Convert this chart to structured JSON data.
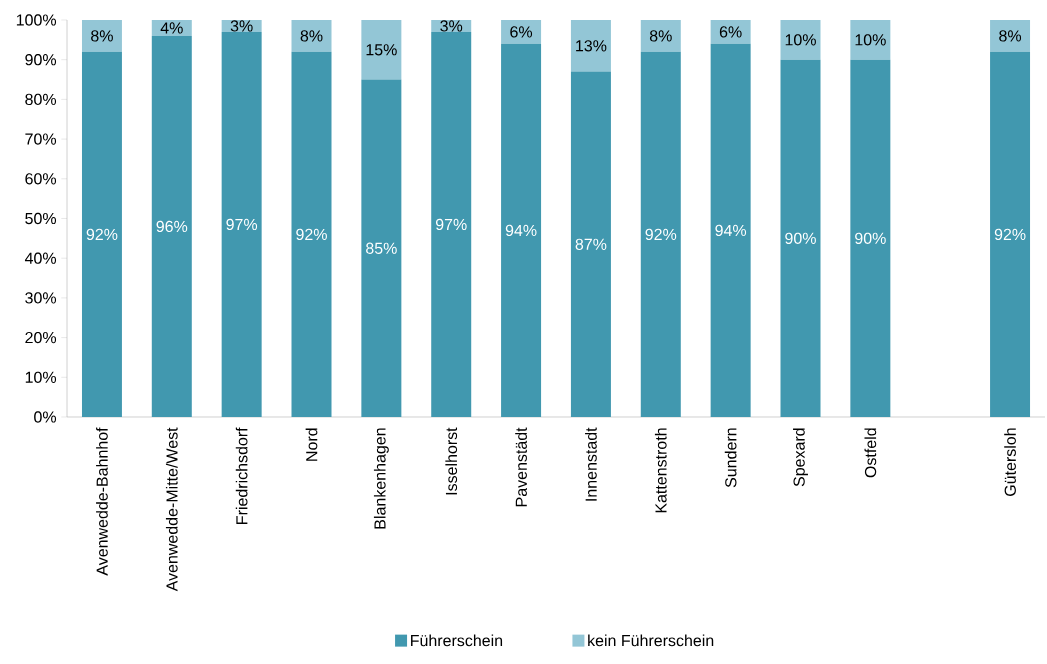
{
  "chart_data": {
    "type": "bar",
    "stacked": true,
    "categories": [
      "Avenwedde-Bahnhof",
      "Avenwedde-Mitte/West",
      "Friedrichsdorf",
      "Nord",
      "Blankenhagen",
      "Isselhorst",
      "Pavenstädt",
      "Innenstadt",
      "Kattenstroth",
      "Sundern",
      "Spexard",
      "Ostfeld",
      null,
      "Gütersloh"
    ],
    "series": [
      {
        "name": "Führerschein",
        "color": "#4198af",
        "values": [
          92,
          96,
          97,
          92,
          85,
          97,
          94,
          87,
          92,
          94,
          90,
          90,
          null,
          92
        ],
        "value_labels": [
          "92%",
          "96%",
          "97%",
          "92%",
          "85%",
          "97%",
          "94%",
          "87%",
          "92%",
          "94%",
          "90%",
          "90%",
          null,
          "92%"
        ]
      },
      {
        "name": "kein Führerschein",
        "color": "#93c6d6",
        "values": [
          8,
          4,
          3,
          8,
          15,
          3,
          6,
          13,
          8,
          6,
          10,
          10,
          null,
          8
        ],
        "value_labels": [
          "8%",
          "4%",
          "3%",
          "8%",
          "15%",
          "3%",
          "6%",
          "13%",
          "8%",
          "6%",
          "10%",
          "10%",
          null,
          "8%"
        ]
      }
    ],
    "ylim": [
      0,
      100
    ],
    "yticks": [
      {
        "value": 0,
        "label": "0%"
      },
      {
        "value": 10,
        "label": "10%"
      },
      {
        "value": 20,
        "label": "20%"
      },
      {
        "value": 30,
        "label": "30%"
      },
      {
        "value": 40,
        "label": "40%"
      },
      {
        "value": 50,
        "label": "50%"
      },
      {
        "value": 60,
        "label": "60%"
      },
      {
        "value": 70,
        "label": "70%"
      },
      {
        "value": 80,
        "label": "80%"
      },
      {
        "value": 90,
        "label": "90%"
      },
      {
        "value": 100,
        "label": "100%"
      }
    ],
    "grid": false,
    "legend": "bottom"
  }
}
